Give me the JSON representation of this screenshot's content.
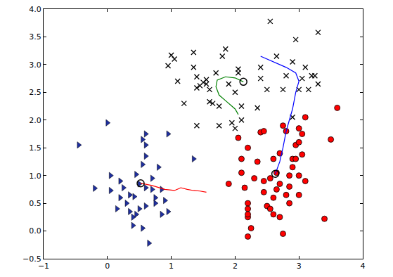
{
  "chart_data": {
    "type": "scatter",
    "xlim": [
      -1,
      4
    ],
    "xticks": [
      {
        "value": -1,
        "label": "−1"
      },
      0,
      1,
      2,
      3,
      4
    ],
    "ylim": [
      -0.5,
      4.0
    ],
    "yticks": [
      {
        "value": -0.5,
        "label": "−0.5"
      },
      {
        "value": 0,
        "label": "0.0"
      },
      {
        "value": 0.5,
        "label": "0.5"
      },
      {
        "value": 1,
        "label": "1.0"
      },
      {
        "value": 1.5,
        "label": "1.5"
      },
      {
        "value": 2,
        "label": "2.0"
      },
      {
        "value": 2.5,
        "label": "2.5"
      },
      {
        "value": 3,
        "label": "3.0"
      },
      {
        "value": 3.5,
        "label": "3.5"
      },
      {
        "value": 4,
        "label": "4.0"
      }
    ],
    "grid": false,
    "series": [
      {
        "type": "scatter",
        "marker": "triangle-right",
        "color": "#1f2fa0",
        "x": [
          -0.45,
          -0.2,
          0.0,
          0.05,
          0.05,
          0.2,
          0.25,
          0.3,
          0.35,
          0.45,
          0.4,
          0.4,
          0.42,
          0.5,
          0.55,
          0.55,
          0.6,
          0.6,
          0.6,
          0.6,
          0.6,
          0.55,
          0.65,
          0.7,
          0.7,
          0.75,
          0.75,
          0.8,
          0.85,
          0.85,
          0.95,
          0.9,
          0.2,
          0.35,
          0.15,
          1.35,
          0.5,
          0.45,
          0.95
        ],
        "values": [
          1.55,
          0.77,
          1.95,
          0.73,
          1.0,
          0.9,
          0.78,
          0.5,
          0.35,
          0.3,
          0.1,
          0.25,
          0.62,
          0.85,
          1.2,
          1.65,
          1.75,
          1.55,
          1.35,
          0.78,
          0.45,
          0.05,
          -0.22,
          0.95,
          0.75,
          0.6,
          0.5,
          1.15,
          0.3,
          0.75,
          1.75,
          0.55,
          0.6,
          0.65,
          0.4,
          1.3,
          0.4,
          1.02,
          0.35
        ]
      },
      {
        "type": "scatter",
        "marker": "x",
        "color": "#000000",
        "x": [
          0.95,
          1.0,
          1.05,
          1.1,
          1.2,
          1.35,
          1.35,
          1.4,
          1.4,
          1.45,
          1.5,
          1.55,
          1.6,
          1.6,
          1.65,
          1.7,
          1.75,
          1.75,
          1.8,
          1.85,
          1.9,
          1.95,
          2.0,
          2.05,
          2.1,
          2.05,
          1.55,
          1.4,
          2.1,
          2.4,
          2.4,
          2.55,
          2.5,
          2.65,
          2.75,
          2.8,
          2.9,
          2.95,
          3.0,
          3.05,
          3.1,
          3.15,
          3.2,
          3.25,
          3.3,
          3.3,
          2.9,
          2.35,
          2.0
        ],
        "values": [
          2.98,
          3.17,
          3.1,
          2.7,
          2.3,
          3.22,
          2.95,
          2.78,
          2.58,
          2.62,
          2.68,
          2.65,
          2.55,
          2.33,
          2.3,
          2.85,
          2.25,
          1.9,
          3.15,
          3.28,
          2.65,
          1.95,
          2.5,
          2.85,
          2.25,
          2.92,
          2.73,
          1.9,
          2.0,
          2.75,
          2.95,
          3.78,
          2.55,
          3.15,
          2.55,
          2.8,
          3.05,
          3.45,
          2.55,
          2.75,
          2.95,
          2.55,
          2.8,
          2.8,
          2.65,
          3.58,
          2.05,
          2.22,
          1.85
        ]
      },
      {
        "type": "scatter",
        "marker": "circle",
        "color": "#ff0000",
        "x": [
          1.9,
          2.05,
          2.1,
          2.1,
          2.15,
          2.2,
          2.2,
          2.2,
          2.2,
          2.25,
          2.2,
          2.2,
          2.3,
          2.35,
          2.4,
          2.45,
          2.45,
          2.45,
          2.5,
          2.55,
          2.55,
          2.6,
          2.6,
          2.6,
          2.65,
          2.7,
          2.7,
          2.7,
          2.75,
          2.75,
          2.8,
          2.85,
          2.85,
          2.85,
          2.9,
          2.9,
          2.95,
          2.95,
          3.0,
          3.0,
          3.0,
          3.05,
          3.05,
          3.1,
          3.1,
          3.4,
          3.5,
          3.6,
          2.65,
          3.0,
          2.8
        ],
        "values": [
          0.85,
          1.68,
          1.3,
          1.05,
          0.78,
          0.5,
          0.4,
          0.25,
          0.3,
          0.05,
          -0.1,
          1.5,
          0.95,
          1.25,
          1.78,
          1.8,
          0.9,
          0.7,
          0.45,
          0.4,
          0.95,
          1.3,
          0.6,
          0.3,
          0.75,
          0.85,
          0.25,
          1.4,
          1.9,
          -0.05,
          1.8,
          1.0,
          0.8,
          0.5,
          1.3,
          1.15,
          1.55,
          1.3,
          1.6,
          1.0,
          0.65,
          1.38,
          1.75,
          2.05,
          0.9,
          0.22,
          1.65,
          2.22,
          1.05,
          1.85,
          0.65
        ]
      },
      {
        "type": "line",
        "line_style": "solid",
        "color": "#ff0000",
        "x": [
          0.52,
          0.7,
          0.9,
          1.05,
          1.15,
          1.25,
          1.35,
          1.45,
          1.55
        ],
        "values": [
          0.86,
          0.82,
          0.75,
          0.73,
          0.78,
          0.75,
          0.73,
          0.72,
          0.7
        ]
      },
      {
        "type": "line",
        "line_style": "solid",
        "color": "#008000",
        "x": [
          2.05,
          2.0,
          1.85,
          1.75,
          1.7,
          1.72,
          1.85,
          2.0,
          2.13
        ],
        "values": [
          2.1,
          2.2,
          2.35,
          2.45,
          2.6,
          2.72,
          2.78,
          2.76,
          2.69
        ]
      },
      {
        "type": "line",
        "line_style": "solid",
        "color": "#0000ff",
        "x": [
          2.4,
          2.6,
          2.8,
          2.95,
          3.0,
          2.95,
          2.9,
          2.85,
          2.8,
          2.75,
          2.7,
          2.63
        ],
        "values": [
          3.15,
          3.05,
          2.95,
          2.85,
          2.7,
          2.5,
          2.2,
          2.0,
          1.8,
          1.5,
          1.25,
          1.03
        ]
      },
      {
        "type": "scatter",
        "marker": "circle-open",
        "color": "#000000",
        "x": [
          0.52,
          2.13,
          2.63
        ],
        "values": [
          0.86,
          2.69,
          1.03
        ]
      }
    ]
  }
}
